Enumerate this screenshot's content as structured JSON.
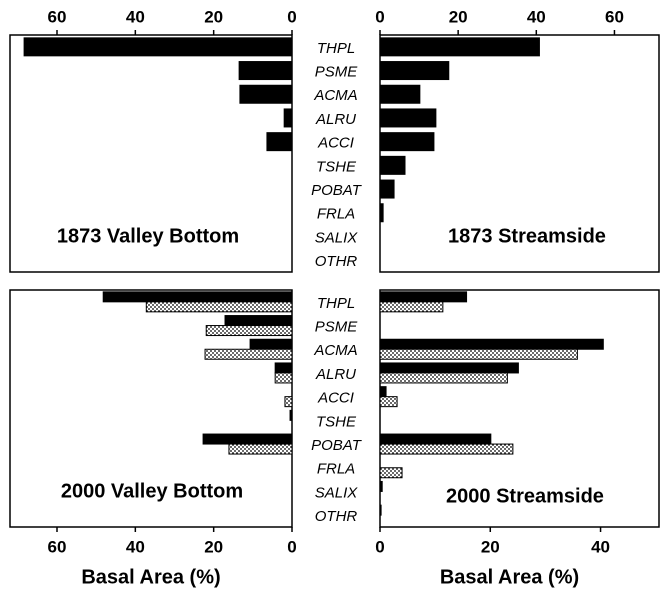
{
  "chart_data": [
    {
      "type": "bar",
      "title": "1873 Valley Bottom",
      "orientation": "horizontal",
      "reversed": true,
      "categories": [
        "THPL",
        "PSME",
        "ACMA",
        "ALRU",
        "ACCI",
        "TSHE",
        "POBAT",
        "FRLA",
        "SALIX",
        "OTHR"
      ],
      "series": [
        {
          "color": "#000000",
          "values": [
            68.4,
            13.5,
            13.3,
            2,
            6.4,
            0,
            0,
            0,
            0,
            0
          ]
        }
      ],
      "xlim": [
        0,
        72
      ],
      "xticks": [
        0,
        20,
        40,
        60
      ]
    },
    {
      "type": "bar",
      "title": "1873 Streamside",
      "orientation": "horizontal",
      "reversed": false,
      "series": [
        {
          "color": "#000000",
          "values": [
            40.8,
            17.6,
            10.2,
            14.3,
            13.8,
            6.4,
            3.6,
            0.8,
            0,
            0
          ]
        }
      ],
      "xlim": [
        0,
        71.4
      ],
      "xticks": [
        0,
        20,
        40,
        60
      ]
    },
    {
      "type": "bar",
      "title": "2000 Valley Bottom",
      "orientation": "horizontal",
      "reversed": true,
      "categories": [
        "THPL",
        "PSME",
        "ACMA",
        "ALRU",
        "ACCI",
        "TSHE",
        "POBAT",
        "FRLA",
        "SALIX",
        "OTHR"
      ],
      "series": [
        {
          "color": "#000000",
          "values": [
            48.2,
            17.1,
            10.7,
            4.3,
            0,
            0.5,
            22.7,
            0,
            0,
            0
          ]
        },
        {
          "color": "#ffffff",
          "pattern": "dots",
          "values": [
            37.2,
            21.9,
            22.2,
            4.3,
            1.8,
            0,
            16.1,
            0,
            0,
            0
          ]
        }
      ],
      "xlim": [
        0,
        72
      ],
      "xticks": [
        0,
        20,
        40,
        60
      ],
      "xlabel": "Basal Area (%)"
    },
    {
      "type": "bar",
      "title": "2000 Streamside",
      "orientation": "horizontal",
      "reversed": false,
      "series": [
        {
          "color": "#000000",
          "values": [
            15.7,
            0,
            40.5,
            25.1,
            1.1,
            0,
            20.1,
            0,
            0.4,
            0.2
          ]
        },
        {
          "color": "#ffffff",
          "pattern": "dots",
          "values": [
            11.4,
            0,
            35.8,
            23.1,
            3.1,
            0,
            24.1,
            4.0,
            0,
            0
          ]
        }
      ],
      "xlim": [
        0,
        50.6
      ],
      "xticks": [
        0,
        20,
        40
      ],
      "xlabel": "Basal Area (%)"
    }
  ]
}
